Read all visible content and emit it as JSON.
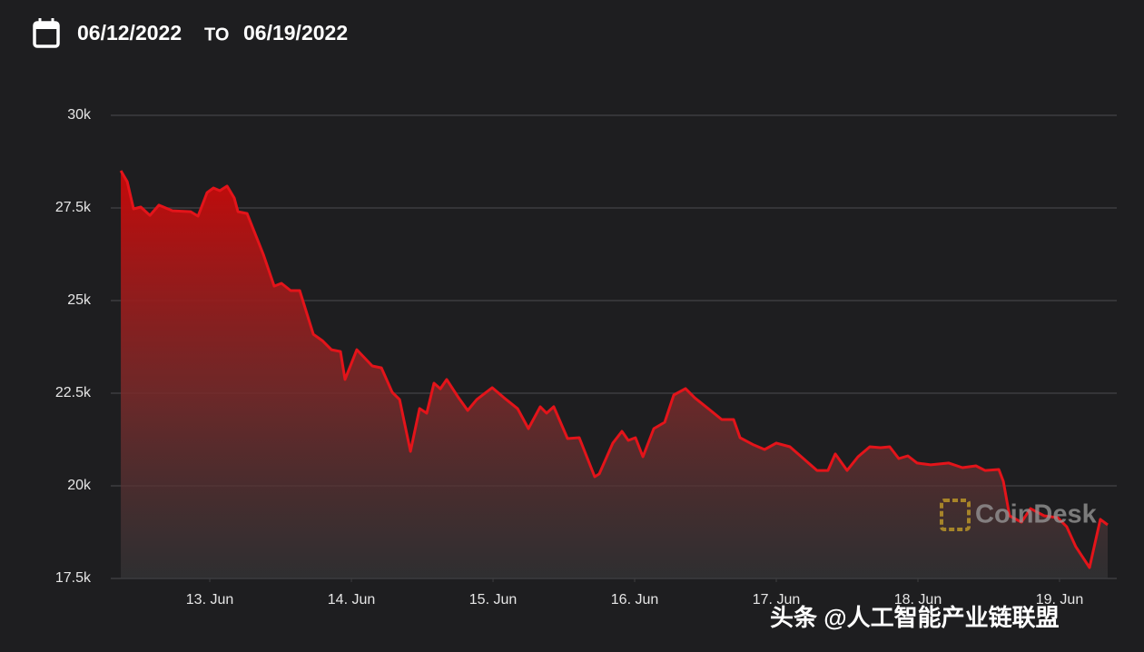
{
  "header": {
    "from": "06/12/2022",
    "separator": "TO",
    "to": "06/19/2022"
  },
  "chart_data": {
    "type": "area",
    "color": "#e3141a",
    "x": [
      12.372,
      12.417,
      12.462,
      12.513,
      12.577,
      12.641,
      12.737,
      12.865,
      12.917,
      12.981,
      13.026,
      13.071,
      13.122,
      13.173,
      13.199,
      13.263,
      13.378,
      13.455,
      13.506,
      13.571,
      13.635,
      13.731,
      13.795,
      13.859,
      13.923,
      13.955,
      14.038,
      14.147,
      14.212,
      14.288,
      14.34,
      14.417,
      14.481,
      14.532,
      14.583,
      14.628,
      14.673,
      14.756,
      14.821,
      14.885,
      14.994,
      15.077,
      15.173,
      15.25,
      15.333,
      15.378,
      15.429,
      15.526,
      15.609,
      15.718,
      15.75,
      15.846,
      15.91,
      15.955,
      16.006,
      16.058,
      16.135,
      16.212,
      16.276,
      16.359,
      16.423,
      16.519,
      16.615,
      16.699,
      16.744,
      16.84,
      16.917,
      17.0,
      17.096,
      17.192,
      17.288,
      17.365,
      17.417,
      17.5,
      17.577,
      17.66,
      17.737,
      17.801,
      17.865,
      17.929,
      17.994,
      18.09,
      18.218,
      18.314,
      18.41,
      18.474,
      18.571,
      18.603,
      18.647,
      18.731,
      18.795,
      18.891,
      18.987,
      19.051,
      19.115,
      19.212,
      19.288,
      19.34
    ],
    "values": [
      28505,
      28210,
      27475,
      27525,
      27300,
      27575,
      27425,
      27400,
      27280,
      27915,
      28040,
      27965,
      28090,
      27770,
      27400,
      27350,
      26250,
      25390,
      25465,
      25270,
      25270,
      24090,
      23920,
      23675,
      23625,
      22870,
      23675,
      23235,
      23185,
      22525,
      22330,
      20930,
      22085,
      21960,
      22770,
      22620,
      22870,
      22380,
      22035,
      22330,
      22650,
      22380,
      22085,
      21545,
      22135,
      21960,
      22135,
      21275,
      21300,
      20245,
      20320,
      21155,
      21470,
      21225,
      21300,
      20785,
      21545,
      21715,
      22450,
      22625,
      22380,
      22085,
      21790,
      21790,
      21300,
      21105,
      20980,
      21155,
      21055,
      20735,
      20415,
      20415,
      20860,
      20415,
      20785,
      21055,
      21030,
      21055,
      20735,
      20810,
      20615,
      20565,
      20615,
      20490,
      20540,
      20415,
      20440,
      20120,
      19190,
      19020,
      19385,
      19190,
      19140,
      18895,
      18355,
      17795,
      19095,
      18945
    ],
    "xlim": [
      12.301,
      19.404
    ],
    "xticks": [
      {
        "value": 13,
        "label": "13. Jun"
      },
      {
        "value": 14,
        "label": "14. Jun"
      },
      {
        "value": 15,
        "label": "15. Jun"
      },
      {
        "value": 16,
        "label": "16. Jun"
      },
      {
        "value": 17,
        "label": "17. Jun"
      },
      {
        "value": 18,
        "label": "18. Jun"
      },
      {
        "value": 19,
        "label": "19. Jun"
      }
    ],
    "ylim": [
      17500,
      30000
    ],
    "yticks": [
      {
        "value": 17500,
        "label": "17.5k"
      },
      {
        "value": 20000,
        "label": "20k"
      },
      {
        "value": 22500,
        "label": "22.5k"
      },
      {
        "value": 25000,
        "label": "25k"
      },
      {
        "value": 27500,
        "label": "27.5k"
      },
      {
        "value": 30000,
        "label": "30k"
      }
    ],
    "grid": true,
    "watermark": "CoinDesk"
  },
  "footer": "头条 @人工智能产业链联盟"
}
